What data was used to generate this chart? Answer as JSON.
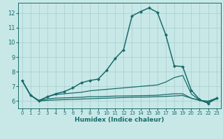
{
  "background_color": "#c8e8e8",
  "grid_color": "#a8cccc",
  "line_color": "#1a6b6b",
  "xlabel": "Humidex (Indice chaleur)",
  "xlim": [
    -0.5,
    23.5
  ],
  "ylim": [
    5.5,
    12.7
  ],
  "yticks": [
    6,
    7,
    8,
    9,
    10,
    11,
    12
  ],
  "xticks": [
    0,
    1,
    2,
    3,
    4,
    5,
    6,
    7,
    8,
    9,
    10,
    11,
    12,
    13,
    14,
    15,
    16,
    17,
    18,
    19,
    20,
    21,
    22,
    23
  ],
  "lines": [
    {
      "x": [
        0,
        1,
        2,
        3,
        4,
        5,
        6,
        7,
        8,
        9,
        10,
        11,
        12,
        13,
        14,
        15,
        16,
        17,
        18,
        19,
        20,
        21,
        22,
        23
      ],
      "y": [
        7.4,
        6.4,
        6.0,
        6.3,
        6.5,
        6.65,
        6.9,
        7.25,
        7.4,
        7.5,
        8.1,
        8.9,
        9.5,
        11.8,
        12.1,
        12.35,
        12.05,
        10.5,
        8.4,
        8.35,
        6.75,
        6.1,
        5.85,
        6.2
      ],
      "marker": "D",
      "markersize": 2.0,
      "linewidth": 1.1
    },
    {
      "x": [
        0,
        1,
        2,
        3,
        4,
        5,
        6,
        7,
        8,
        9,
        10,
        11,
        12,
        13,
        14,
        15,
        16,
        17,
        18,
        19,
        20,
        21,
        22,
        23
      ],
      "y": [
        7.4,
        6.4,
        6.05,
        6.3,
        6.45,
        6.5,
        6.55,
        6.6,
        6.7,
        6.75,
        6.8,
        6.85,
        6.9,
        6.95,
        7.0,
        7.05,
        7.1,
        7.3,
        7.6,
        7.75,
        6.5,
        6.05,
        6.0,
        6.2
      ],
      "marker": null,
      "linewidth": 0.9
    },
    {
      "x": [
        0,
        1,
        2,
        3,
        4,
        5,
        6,
        7,
        8,
        9,
        10,
        11,
        12,
        13,
        14,
        15,
        16,
        17,
        18,
        19,
        20,
        21,
        22,
        23
      ],
      "y": [
        7.4,
        6.4,
        6.0,
        6.15,
        6.2,
        6.22,
        6.24,
        6.26,
        6.3,
        6.3,
        6.32,
        6.34,
        6.35,
        6.36,
        6.37,
        6.38,
        6.4,
        6.45,
        6.5,
        6.5,
        6.2,
        6.05,
        5.95,
        6.15
      ],
      "marker": null,
      "linewidth": 0.9
    },
    {
      "x": [
        0,
        1,
        2,
        3,
        4,
        5,
        6,
        7,
        8,
        9,
        10,
        11,
        12,
        13,
        14,
        15,
        16,
        17,
        18,
        19,
        20,
        21,
        22,
        23
      ],
      "y": [
        7.4,
        6.4,
        6.0,
        6.05,
        6.08,
        6.1,
        6.12,
        6.14,
        6.16,
        6.18,
        6.2,
        6.22,
        6.24,
        6.26,
        6.27,
        6.28,
        6.3,
        6.32,
        6.35,
        6.38,
        6.2,
        6.05,
        5.88,
        6.15
      ],
      "marker": null,
      "linewidth": 0.9
    }
  ]
}
